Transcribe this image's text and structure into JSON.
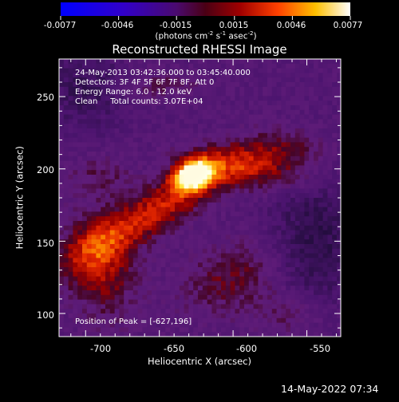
{
  "chart_data": {
    "type": "heatmap",
    "title": "Reconstructed RHESSI Image",
    "xlabel": "Heliocentric X (arcsec)",
    "ylabel": "Heliocentric Y (arcsec)",
    "xlim": [
      -718,
      -527
    ],
    "ylim": [
      84,
      276
    ],
    "x_ticks": [
      "-700",
      "-650",
      "-600",
      "-550"
    ],
    "y_ticks": [
      "100",
      "150",
      "200",
      "250"
    ],
    "x_tick_values": [
      -700,
      -650,
      -600,
      -550
    ],
    "y_tick_values": [
      100,
      150,
      200,
      250
    ],
    "colorbar": {
      "min": -0.0077,
      "max": 0.0077,
      "tick_labels": [
        "-0.0077",
        "-0.0046",
        "-0.0015",
        "0.0015",
        "0.0046",
        "0.0077"
      ],
      "unit_label_parts": [
        "(photons cm",
        "-2",
        " s",
        "-1",
        " asec",
        "-2",
        ")"
      ]
    },
    "annotations": [
      "24-May-2013 03:42:36.000 to 03:45:40.000",
      "Detectors: 3F 4F 5F 6F 7F 8F, Att 0",
      "Energy Range: 6.0 - 12.0 keV",
      "Clean     Total counts: 3.07E+04"
    ],
    "peak_label": "Position of Peak = [-627,196]",
    "peak": [
      -627,
      196
    ],
    "colormap": "rhessi-blue-purple-red-yellow-white"
  },
  "footer": {
    "timestamp": "14-May-2022 07:34"
  },
  "colors": {
    "background": "#000000",
    "foreground": "#ffffff"
  }
}
